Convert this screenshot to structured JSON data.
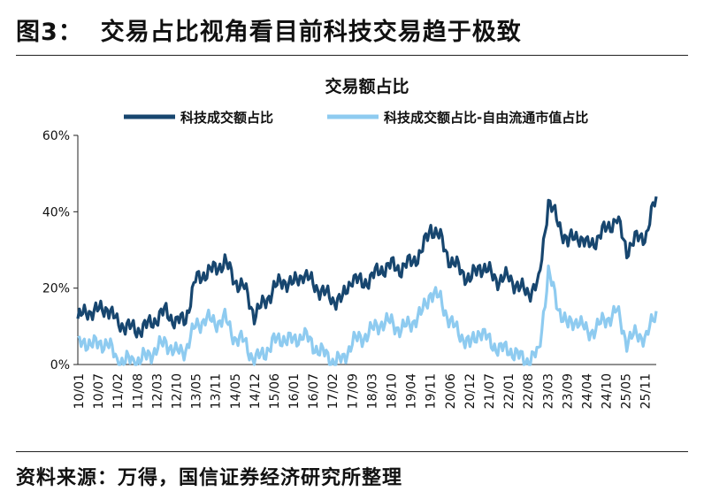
{
  "figure": {
    "number": "图3：",
    "title": "交易占比视角看目前科技交易趋于极致",
    "source": "资料来源：万得，国信证券经济研究所整理"
  },
  "chart_data": {
    "type": "line",
    "title": "交易额占比",
    "ylim": [
      0,
      60
    ],
    "yticks": [
      "0%",
      "20%",
      "40%",
      "60%"
    ],
    "x_tick_labels": [
      "10/01",
      "10/07",
      "11/02",
      "11/08",
      "12/03",
      "12/10",
      "13/05",
      "13/11",
      "14/05",
      "14/12",
      "15/06",
      "16/01",
      "16/07",
      "17/02",
      "17/09",
      "18/03",
      "18/10",
      "19/04",
      "19/11",
      "20/06",
      "20/12",
      "21/07",
      "22/01",
      "22/08",
      "23/03",
      "23/09",
      "24/04",
      "24/10",
      "25/05",
      "25/11"
    ],
    "legend_position": "top",
    "x": [
      "10/01",
      "10/04",
      "10/07",
      "10/10",
      "11/02",
      "11/05",
      "11/08",
      "11/11",
      "12/03",
      "12/06",
      "12/10",
      "13/01",
      "13/05",
      "13/08",
      "13/11",
      "14/02",
      "14/05",
      "14/08",
      "14/12",
      "15/03",
      "15/06",
      "15/09",
      "16/01",
      "16/04",
      "16/07",
      "16/10",
      "17/02",
      "17/05",
      "17/09",
      "17/12",
      "18/03",
      "18/06",
      "18/10",
      "19/01",
      "19/04",
      "19/07",
      "19/11",
      "20/02",
      "20/06",
      "20/09",
      "20/12",
      "21/03",
      "21/07",
      "21/10",
      "22/01",
      "22/04",
      "22/08",
      "22/11",
      "23/03",
      "23/06",
      "23/09",
      "23/12",
      "24/04",
      "24/07",
      "24/10",
      "25/01",
      "25/05",
      "25/08",
      "25/11",
      "26/01"
    ],
    "series": [
      {
        "name": "科技成交额占比",
        "color": "#17466f",
        "values": [
          12,
          14,
          14,
          15,
          11,
          10,
          9,
          10,
          12,
          14,
          11,
          12,
          22,
          24,
          25,
          27,
          22,
          20,
          13,
          16,
          20,
          22,
          21,
          24,
          21,
          19,
          17,
          17,
          23,
          21,
          23,
          25,
          26,
          25,
          27,
          29,
          36,
          33,
          27,
          25,
          22,
          26,
          24,
          22,
          23,
          20,
          19,
          21,
          43,
          37,
          32,
          34,
          31,
          33,
          36,
          38,
          30,
          33,
          34,
          44
        ]
      },
      {
        "name": "科技成交额占比-自由流通市值占比",
        "color": "#8ecbf0",
        "values": [
          5,
          6,
          5,
          6,
          1,
          1,
          1,
          2,
          4,
          6,
          3,
          4,
          10,
          12,
          11,
          12,
          7,
          6,
          1,
          3,
          6,
          7,
          6,
          8,
          5,
          3,
          1,
          1,
          6,
          7,
          9,
          11,
          11,
          9,
          11,
          13,
          19,
          17,
          11,
          8,
          5,
          9,
          6,
          4,
          4,
          2,
          1,
          3,
          24,
          15,
          10,
          12,
          8,
          10,
          12,
          14,
          6,
          8,
          7,
          14
        ]
      }
    ]
  }
}
